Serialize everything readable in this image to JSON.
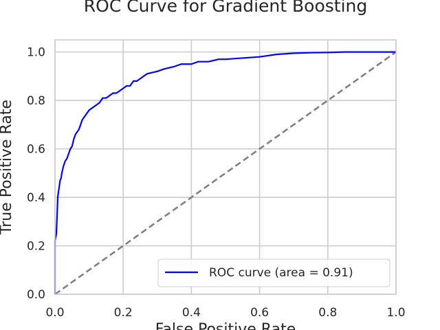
{
  "chart_data": {
    "type": "line",
    "title": "ROC Curve for Gradient Boosting",
    "xlabel": "False Positive Rate",
    "ylabel": "True Positive Rate",
    "xlim": [
      0.0,
      1.0
    ],
    "ylim": [
      0.0,
      1.05
    ],
    "xticks": [
      "0.0",
      "0.2",
      "0.4",
      "0.6",
      "0.8",
      "1.0"
    ],
    "yticks": [
      "0.0",
      "0.2",
      "0.4",
      "0.6",
      "0.8",
      "1.0"
    ],
    "grid": true,
    "legend_position": "lower-right",
    "series": [
      {
        "name": "ROC curve (area = 0.91)",
        "color": "#0000ff",
        "style": "solid",
        "x": [
          0.0,
          0.0,
          0.004,
          0.006,
          0.008,
          0.01,
          0.012,
          0.015,
          0.018,
          0.02,
          0.025,
          0.03,
          0.035,
          0.04,
          0.045,
          0.05,
          0.055,
          0.06,
          0.065,
          0.07,
          0.075,
          0.08,
          0.09,
          0.095,
          0.1,
          0.11,
          0.12,
          0.13,
          0.14,
          0.15,
          0.16,
          0.17,
          0.18,
          0.19,
          0.2,
          0.21,
          0.22,
          0.23,
          0.24,
          0.25,
          0.27,
          0.3,
          0.32,
          0.35,
          0.37,
          0.4,
          0.42,
          0.45,
          0.48,
          0.5,
          0.55,
          0.6,
          0.65,
          0.7,
          0.75,
          0.8,
          0.85,
          0.9,
          1.0
        ],
        "y": [
          0.0,
          0.22,
          0.25,
          0.32,
          0.4,
          0.42,
          0.44,
          0.47,
          0.48,
          0.5,
          0.53,
          0.55,
          0.56,
          0.58,
          0.6,
          0.61,
          0.64,
          0.66,
          0.67,
          0.68,
          0.7,
          0.72,
          0.74,
          0.75,
          0.76,
          0.77,
          0.78,
          0.79,
          0.81,
          0.81,
          0.82,
          0.83,
          0.83,
          0.84,
          0.85,
          0.86,
          0.86,
          0.88,
          0.88,
          0.89,
          0.91,
          0.92,
          0.93,
          0.94,
          0.95,
          0.95,
          0.96,
          0.96,
          0.97,
          0.97,
          0.975,
          0.98,
          0.99,
          0.995,
          0.997,
          0.998,
          1.0,
          1.0,
          1.0
        ]
      },
      {
        "name": "",
        "color": "#808080",
        "style": "dashed",
        "x": [
          0.0,
          1.0
        ],
        "y": [
          0.0,
          1.0
        ]
      }
    ]
  }
}
